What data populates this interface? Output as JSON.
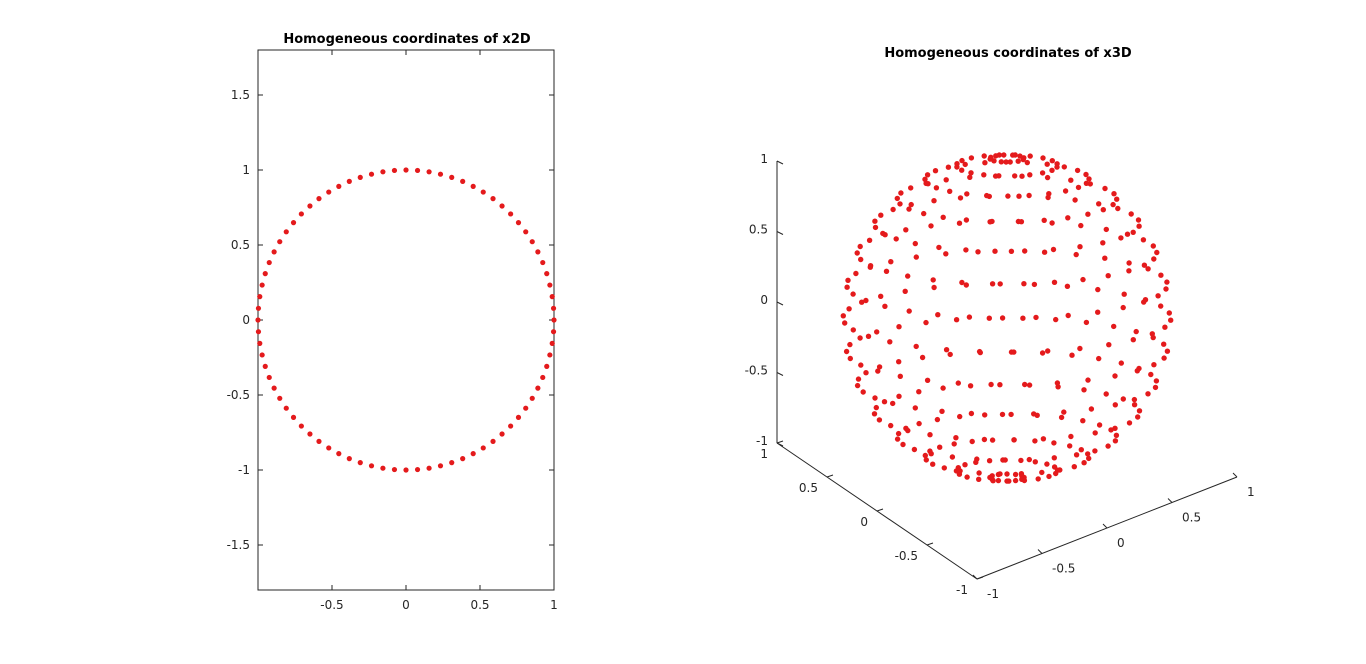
{
  "chart_data": [
    {
      "type": "scatter",
      "title": "Homogeneous coordinates of x2D",
      "xlabel": "",
      "ylabel": "",
      "xlim": [
        -1,
        1
      ],
      "ylim": [
        -1.8,
        1.8
      ],
      "x_ticks": [
        -0.5,
        0,
        0.5,
        1
      ],
      "x_tick_labels": [
        "-0.5",
        "0",
        "0.5",
        "1"
      ],
      "y_ticks": [
        1.5,
        1,
        0.5,
        0,
        -0.5,
        -1,
        -1.5
      ],
      "y_tick_labels": [
        "1.5",
        "1",
        "0.5",
        "0",
        "-0.5",
        "-1",
        "-1.5"
      ],
      "grid": false,
      "marker_color": "#e41a1c",
      "series": [
        {
          "shape": "unit circle",
          "x": [
            1.0,
            0.997,
            0.988,
            0.972,
            0.951,
            0.924,
            0.891,
            0.853,
            0.809,
            0.76,
            0.707,
            0.649,
            0.588,
            0.522,
            0.454,
            0.383,
            0.309,
            0.233,
            0.156,
            0.078,
            0.0,
            -0.078,
            -0.156,
            -0.233,
            -0.309,
            -0.383,
            -0.454,
            -0.522,
            -0.588,
            -0.649,
            -0.707,
            -0.76,
            -0.809,
            -0.853,
            -0.891,
            -0.924,
            -0.951,
            -0.972,
            -0.988,
            -0.997,
            -1.0,
            -0.997,
            -0.988,
            -0.972,
            -0.951,
            -0.924,
            -0.891,
            -0.853,
            -0.809,
            -0.76,
            -0.707,
            -0.649,
            -0.588,
            -0.522,
            -0.454,
            -0.383,
            -0.309,
            -0.233,
            -0.156,
            -0.078,
            0.0,
            0.078,
            0.156,
            0.233,
            0.309,
            0.383,
            0.454,
            0.522,
            0.588,
            0.649,
            0.707,
            0.76,
            0.809,
            0.853,
            0.891,
            0.924,
            0.951,
            0.972,
            0.988,
            0.997
          ],
          "y": [
            0.0,
            0.078,
            0.156,
            0.233,
            0.309,
            0.383,
            0.454,
            0.522,
            0.588,
            0.649,
            0.707,
            0.76,
            0.809,
            0.853,
            0.891,
            0.924,
            0.951,
            0.972,
            0.988,
            0.997,
            1.0,
            0.997,
            0.988,
            0.972,
            0.951,
            0.924,
            0.891,
            0.853,
            0.809,
            0.76,
            0.707,
            0.649,
            0.588,
            0.522,
            0.454,
            0.383,
            0.309,
            0.233,
            0.156,
            0.078,
            0.0,
            -0.078,
            -0.156,
            -0.233,
            -0.309,
            -0.383,
            -0.454,
            -0.522,
            -0.588,
            -0.649,
            -0.707,
            -0.76,
            -0.809,
            -0.853,
            -0.891,
            -0.924,
            -0.951,
            -0.972,
            -0.988,
            -0.997,
            -1.0,
            -0.997,
            -0.988,
            -0.972,
            -0.951,
            -0.924,
            -0.891,
            -0.853,
            -0.809,
            -0.76,
            -0.707,
            -0.649,
            -0.588,
            -0.522,
            -0.454,
            -0.383,
            -0.309,
            -0.233,
            -0.156,
            -0.078
          ]
        }
      ]
    },
    {
      "type": "scatter",
      "title": "Homogeneous coordinates of x3D",
      "xlabel": "",
      "ylabel": "",
      "zlabel": "",
      "xlim": [
        -1,
        1
      ],
      "ylim": [
        -1,
        1
      ],
      "zlim": [
        -1,
        1
      ],
      "x_ticks": [
        -1,
        -0.5,
        0,
        0.5,
        1
      ],
      "x_tick_labels": [
        "-1",
        "-0.5",
        "0",
        "0.5",
        "1"
      ],
      "y_ticks": [
        -1,
        -0.5,
        0,
        0.5,
        1
      ],
      "y_tick_labels": [
        "-1",
        "-0.5",
        "0",
        "0.5",
        "1"
      ],
      "z_ticks": [
        -1,
        -0.5,
        0,
        0.5,
        1
      ],
      "z_tick_labels": [
        "-1",
        "-0.5",
        "0",
        "0.5",
        "1"
      ],
      "grid": false,
      "marker_color": "#e41a1c",
      "series": [
        {
          "shape": "points on the unit sphere",
          "sampling": "latitude rings",
          "latitude_deg": [
            -84,
            -72,
            -60,
            -48,
            -36,
            -24,
            -12,
            0,
            12,
            24,
            36,
            48,
            60,
            72,
            84
          ],
          "points_per_ring": [
            12,
            20,
            24,
            26,
            28,
            30,
            30,
            30,
            30,
            30,
            28,
            26,
            24,
            20,
            12
          ]
        }
      ]
    }
  ]
}
